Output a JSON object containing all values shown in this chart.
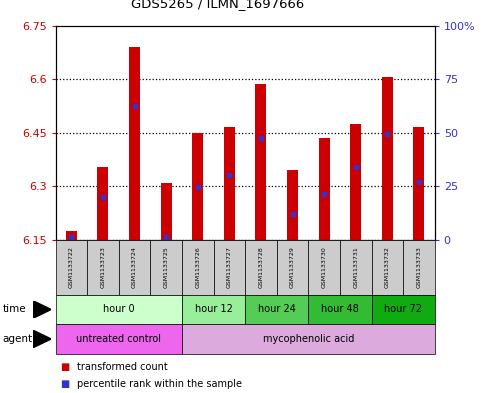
{
  "title": "GDS5265 / ILMN_1697666",
  "samples": [
    "GSM1133722",
    "GSM1133723",
    "GSM1133724",
    "GSM1133725",
    "GSM1133726",
    "GSM1133727",
    "GSM1133728",
    "GSM1133729",
    "GSM1133730",
    "GSM1133731",
    "GSM1133732",
    "GSM1133733"
  ],
  "bar_values": [
    6.175,
    6.355,
    6.69,
    6.31,
    6.45,
    6.465,
    6.585,
    6.345,
    6.435,
    6.475,
    6.605,
    6.465
  ],
  "blue_positions": [
    6.157,
    6.27,
    6.525,
    6.158,
    6.298,
    6.33,
    6.435,
    6.222,
    6.278,
    6.355,
    6.445,
    6.312
  ],
  "ymin": 6.15,
  "ymax": 6.75,
  "y_ticks_left": [
    6.15,
    6.3,
    6.45,
    6.6,
    6.75
  ],
  "y_ticks_right_vals": [
    0,
    25,
    50,
    75,
    100
  ],
  "y_ticks_right_labels": [
    "0",
    "25",
    "50",
    "75",
    "100%"
  ],
  "bar_color": "#cc0000",
  "blue_color": "#3333cc",
  "bar_width": 0.35,
  "time_groups": [
    {
      "label": "hour 0",
      "cols": [
        0,
        1,
        2,
        3
      ],
      "color": "#ccffcc"
    },
    {
      "label": "hour 12",
      "cols": [
        4,
        5
      ],
      "color": "#99ee99"
    },
    {
      "label": "hour 24",
      "cols": [
        6,
        7
      ],
      "color": "#55cc55"
    },
    {
      "label": "hour 48",
      "cols": [
        8,
        9
      ],
      "color": "#33bb33"
    },
    {
      "label": "hour 72",
      "cols": [
        10,
        11
      ],
      "color": "#11aa11"
    }
  ],
  "agent_groups": [
    {
      "label": "untreated control",
      "cols": [
        0,
        1,
        2,
        3
      ],
      "color": "#ee66ee"
    },
    {
      "label": "mycophenolic acid",
      "cols": [
        4,
        5,
        6,
        7,
        8,
        9,
        10,
        11
      ],
      "color": "#ddaadd"
    }
  ],
  "bg_color": "#ffffff",
  "left_tick_color": "#cc0000",
  "right_tick_color": "#3333cc",
  "sample_bg": "#cccccc"
}
